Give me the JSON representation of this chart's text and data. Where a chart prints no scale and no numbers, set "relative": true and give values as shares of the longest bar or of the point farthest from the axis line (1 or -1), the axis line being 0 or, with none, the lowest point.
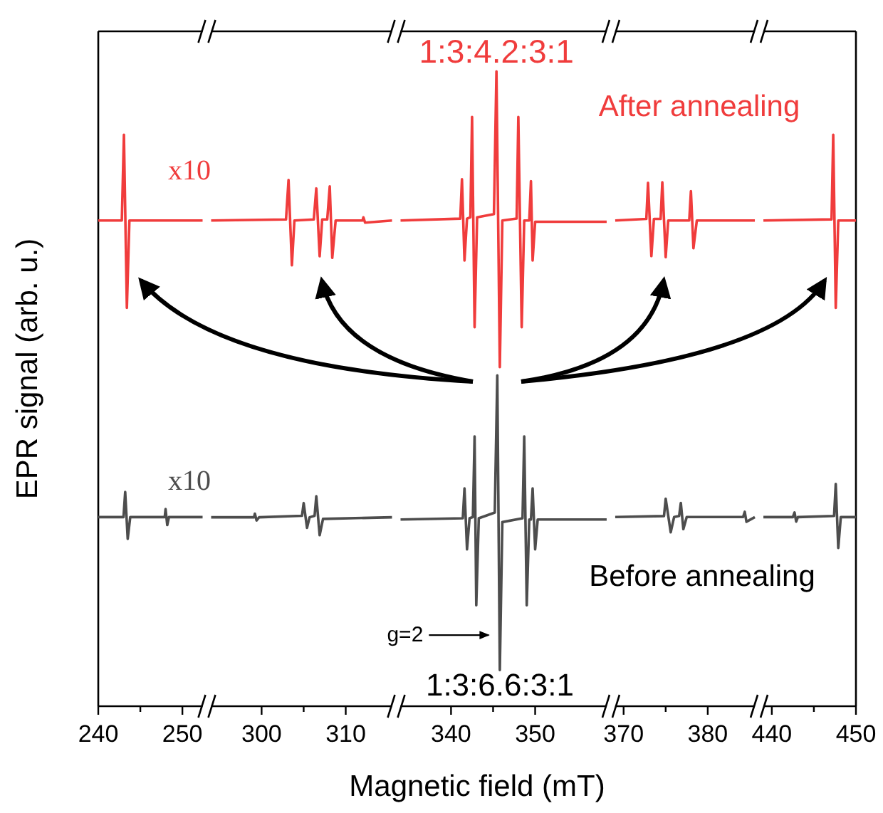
{
  "chart_data": [
    {
      "type": "line",
      "relative": true,
      "ylabel": "EPR signal (arb. u.)",
      "xlim": [
        240,
        252.4
      ],
      "xticks": [
        240,
        {
          "value": 245,
          "label": null
        },
        250
      ],
      "line_style": "solid",
      "series": [
        {
          "color": "#f03c3c",
          "x": [
            240,
            242.8,
            243.05,
            243.4,
            243.7,
            252.4
          ],
          "values": [
            0.85,
            0.85,
            1,
            0.697,
            0.85,
            0.85
          ]
        },
        {
          "color": "#4d4d4d",
          "x": [
            240,
            243.0,
            243.2,
            243.5,
            243.8,
            247.9,
            248.0,
            248.2,
            248.4,
            252.4
          ],
          "values": [
            0.331,
            0.331,
            0.375,
            0.293,
            0.331,
            0.331,
            0.345,
            0.317,
            0.331,
            0.331
          ]
        }
      ],
      "annotations": [
        "x10",
        "x10"
      ]
    },
    {
      "type": "line",
      "relative": true,
      "xlim": [
        294,
        315.5
      ],
      "xticks": [
        300,
        {
          "value": 305,
          "label": null
        },
        310
      ],
      "line_style": "solid",
      "series": [
        {
          "color": "#f03c3c",
          "x": [
            294,
            302.9,
            303.2,
            303.6,
            303.9,
            306.2,
            306.5,
            306.9,
            307.2,
            307.8,
            308.1,
            308.4,
            308.8,
            312.0,
            312.1,
            312.3,
            315.5
          ],
          "values": [
            0.923,
            0.925,
            1,
            0.838,
            0.923,
            0.925,
            0.984,
            0.855,
            0.925,
            0.925,
            0.988,
            0.852,
            0.923,
            0.923,
            0.929,
            0.919,
            0.923
          ]
        },
        {
          "color": "#4d4d4d",
          "x": [
            294,
            299.1,
            299.2,
            299.4,
            299.7,
            304.8,
            305.0,
            305.4,
            305.7,
            306.3,
            306.5,
            306.9,
            307.3,
            315.5
          ],
          "values": [
            0.359,
            0.359,
            0.366,
            0.353,
            0.359,
            0.362,
            0.386,
            0.339,
            0.359,
            0.362,
            0.399,
            0.325,
            0.356,
            0.359
          ]
        }
      ]
    },
    {
      "type": "line",
      "relative": true,
      "xlabel": "Magnetic field (mT)",
      "xlim": [
        334,
        358.5
      ],
      "xticks": [
        340,
        {
          "value": 345,
          "label": null
        },
        350
      ],
      "line_style": "solid",
      "series": [
        {
          "color": "#f03c3c",
          "x": [
            334,
            341.1,
            341.3,
            341.6,
            341.9,
            342.3,
            342.5,
            342.8,
            343.1,
            345.1,
            345.4,
            345.8,
            346.1,
            347.8,
            348.0,
            348.4,
            348.7,
            349.3,
            349.5,
            349.7,
            350.0,
            358.5
          ],
          "values": [
            0.765,
            0.768,
            0.83,
            0.702,
            0.768,
            0.77,
            0.928,
            0.597,
            0.77,
            0.775,
            1.0,
            0.534,
            0.765,
            0.768,
            0.928,
            0.597,
            0.765,
            0.765,
            0.827,
            0.702,
            0.763,
            0.763
          ]
        },
        {
          "color": "#4d4d4d",
          "x": [
            334,
            341.4,
            341.6,
            341.9,
            342.2,
            342.6,
            342.8,
            343.0,
            343.3,
            345.2,
            345.5,
            345.8,
            346.1,
            348.5,
            348.7,
            349.0,
            349.3,
            349.5,
            349.7,
            350.0,
            350.3,
            358.5
          ],
          "values": [
            0.294,
            0.296,
            0.343,
            0.247,
            0.296,
            0.298,
            0.425,
            0.159,
            0.296,
            0.305,
            0.521,
            0.057,
            0.29,
            0.296,
            0.425,
            0.159,
            0.294,
            0.294,
            0.343,
            0.247,
            0.294,
            0.294
          ]
        }
      ],
      "annotations": [
        {
          "text": "1:3:4.2:3:1",
          "x": 345.4,
          "y": 1.0
        },
        {
          "text": "g=2",
          "x": 345.5,
          "y": 0.112
        },
        {
          "text": "1:3:6.6:3:1",
          "x": 345.8,
          "y": 0.057
        }
      ]
    },
    {
      "type": "line",
      "relative": true,
      "xlim": [
        369,
        385.6
      ],
      "xticks": [
        370,
        {
          "value": 375,
          "label": null
        },
        380
      ],
      "line_style": "solid",
      "series": [
        {
          "color": "#f03c3c",
          "x": [
            369,
            372.7,
            372.9,
            373.3,
            373.6,
            374.4,
            374.6,
            375.0,
            375.3,
            377.8,
            378.0,
            378.3,
            378.7,
            385.6
          ],
          "values": [
            0.927,
            0.93,
            0.999,
            0.859,
            0.93,
            0.93,
            1,
            0.857,
            0.927,
            0.927,
            0.983,
            0.874,
            0.927,
            0.927
          ]
        },
        {
          "color": "#4d4d4d",
          "x": [
            369,
            374.8,
            375.0,
            375.6,
            376.0,
            376.6,
            376.8,
            377.1,
            377.5,
            384.2,
            384.4,
            384.6,
            385.6
          ],
          "values": [
            0.361,
            0.363,
            0.396,
            0.332,
            0.361,
            0.363,
            0.388,
            0.338,
            0.361,
            0.361,
            0.371,
            0.352,
            0.361
          ]
        }
      ],
      "annotations": [
        "After annealing",
        "Before annealing"
      ]
    },
    {
      "type": "line",
      "relative": true,
      "xlim": [
        439,
        450
      ],
      "xticks": [
        440,
        {
          "value": 445,
          "label": null
        },
        450
      ],
      "line_style": "solid",
      "series": [
        {
          "color": "#f03c3c",
          "x": [
            439,
            447.1,
            447.3,
            447.6,
            447.9,
            450
          ],
          "values": [
            0.85,
            0.852,
            1,
            0.697,
            0.85,
            0.85
          ]
        },
        {
          "color": "#4d4d4d",
          "x": [
            439,
            442.5,
            442.7,
            442.9,
            443.1,
            447.4,
            447.6,
            447.9,
            448.2,
            450
          ],
          "values": [
            0.331,
            0.331,
            0.339,
            0.323,
            0.331,
            0.333,
            0.389,
            0.277,
            0.331,
            0.331
          ]
        }
      ]
    }
  ]
}
